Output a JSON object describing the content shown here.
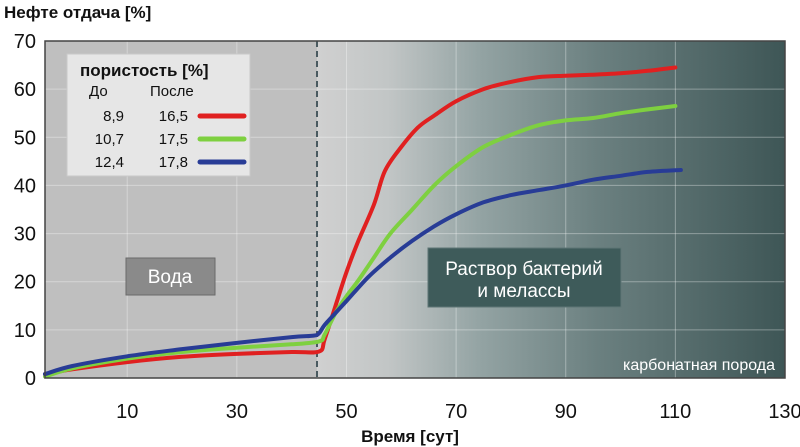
{
  "chart_data": {
    "type": "line",
    "ylabel": "Нефте отдача [%]",
    "xlabel": "Время [сут]",
    "xlim": [
      -5,
      130
    ],
    "ylim": [
      0,
      70
    ],
    "x_ticks": [
      "10",
      "30",
      "50",
      "70",
      "90",
      "110",
      "130"
    ],
    "y_ticks": [
      "0",
      "10",
      "20",
      "30",
      "40",
      "50",
      "60",
      "70"
    ],
    "divider_x": 45,
    "legend": {
      "title": "пористость [%]",
      "col_before": "До",
      "col_after": "После",
      "placement": "top-left"
    },
    "zones": [
      {
        "label": "Вода",
        "from": -5,
        "to": 45
      },
      {
        "label_line1": "Раствор бактерий",
        "label_line2": "и мелассы",
        "from": 45,
        "to": 130
      }
    ],
    "rock_label": "карбонатная порода",
    "series": [
      {
        "before": "8,9",
        "after": "16,5",
        "color": "#e02020",
        "points": [
          [
            -5,
            0.8
          ],
          [
            0,
            1.8
          ],
          [
            10,
            3.3
          ],
          [
            20,
            4.4
          ],
          [
            30,
            5.0
          ],
          [
            40,
            5.4
          ],
          [
            45,
            5.5
          ],
          [
            46,
            8
          ],
          [
            48,
            15
          ],
          [
            50,
            22
          ],
          [
            52,
            28
          ],
          [
            55,
            36
          ],
          [
            57,
            43
          ],
          [
            60,
            48
          ],
          [
            63,
            52
          ],
          [
            66,
            54.5
          ],
          [
            70,
            57.5
          ],
          [
            75,
            60
          ],
          [
            80,
            61.5
          ],
          [
            85,
            62.5
          ],
          [
            90,
            62.8
          ],
          [
            95,
            63
          ],
          [
            100,
            63.3
          ],
          [
            105,
            63.8
          ],
          [
            110,
            64.5
          ]
        ]
      },
      {
        "before": "10,7",
        "after": "17,5",
        "color": "#7ed040",
        "points": [
          [
            -5,
            0.3
          ],
          [
            0,
            2
          ],
          [
            10,
            4
          ],
          [
            20,
            5.4
          ],
          [
            30,
            6.3
          ],
          [
            40,
            7
          ],
          [
            45,
            7.6
          ],
          [
            46,
            9
          ],
          [
            48,
            13.5
          ],
          [
            50,
            17
          ],
          [
            52,
            20
          ],
          [
            55,
            25
          ],
          [
            58,
            30
          ],
          [
            62,
            35
          ],
          [
            66,
            40
          ],
          [
            70,
            44
          ],
          [
            75,
            48
          ],
          [
            80,
            50.5
          ],
          [
            85,
            52.5
          ],
          [
            90,
            53.5
          ],
          [
            95,
            54
          ],
          [
            100,
            55
          ],
          [
            105,
            55.8
          ],
          [
            110,
            56.5
          ]
        ]
      },
      {
        "before": "12,4",
        "after": "17,8",
        "color": "#283c96",
        "points": [
          [
            -5,
            0.8
          ],
          [
            0,
            2.5
          ],
          [
            10,
            4.5
          ],
          [
            20,
            6
          ],
          [
            30,
            7.3
          ],
          [
            40,
            8.5
          ],
          [
            44,
            8.8
          ],
          [
            45,
            9.3
          ],
          [
            46,
            11
          ],
          [
            48,
            13.5
          ],
          [
            50,
            16
          ],
          [
            54,
            21
          ],
          [
            58,
            25
          ],
          [
            62,
            28.5
          ],
          [
            66,
            31.5
          ],
          [
            70,
            34
          ],
          [
            75,
            36.5
          ],
          [
            80,
            38
          ],
          [
            85,
            39
          ],
          [
            90,
            40
          ],
          [
            95,
            41.2
          ],
          [
            100,
            42
          ],
          [
            105,
            42.8
          ],
          [
            111,
            43.2
          ]
        ]
      }
    ]
  }
}
